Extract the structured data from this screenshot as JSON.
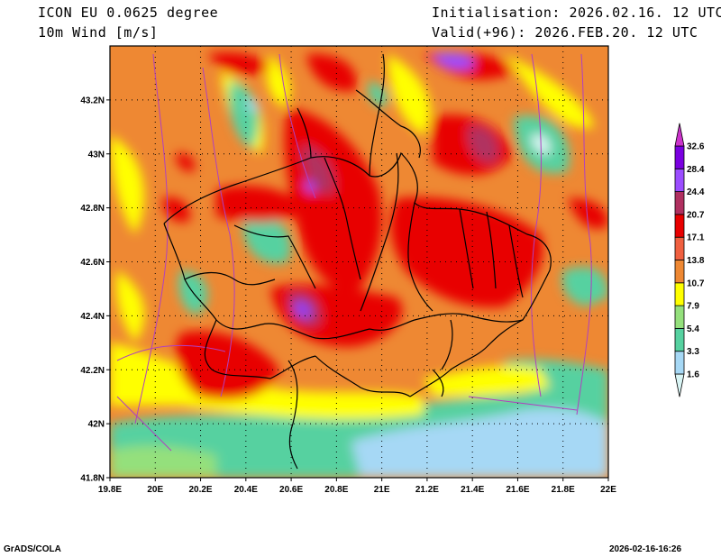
{
  "header": {
    "model_title": "ICON EU 0.0625 degree",
    "field_title": "10m Wind [m/s]",
    "init_text": "Initialisation: 2026.02.16. 12 UTC",
    "valid_text": "Valid(+96): 2026.FEB.20. 12 UTC"
  },
  "map": {
    "lon_range": [
      19.8,
      22.0
    ],
    "lat_range": [
      41.8,
      43.4
    ],
    "x_ticks": [
      "19.8E",
      "20E",
      "20.2E",
      "20.4E",
      "20.6E",
      "20.8E",
      "21E",
      "21.2E",
      "21.4E",
      "21.6E",
      "21.8E",
      "22E"
    ],
    "y_ticks": [
      "41.8N",
      "42N",
      "42.2N",
      "42.4N",
      "42.6N",
      "42.8N",
      "43N",
      "43.2N"
    ],
    "grid": "dotted"
  },
  "colorbar": {
    "levels": [
      "1.6",
      "3.3",
      "5.4",
      "7.9",
      "10.7",
      "13.8",
      "17.1",
      "20.7",
      "24.4",
      "28.4",
      "32.6"
    ],
    "colors": [
      "#d9f5f5",
      "#a6d8f5",
      "#56d1a0",
      "#94e07c",
      "#ffff00",
      "#ee8833",
      "#f06040",
      "#e80000",
      "#b03060",
      "#9b4dff",
      "#7a00e0",
      "#cc33cc"
    ]
  },
  "colors": {
    "bg_orange": "#ee8833",
    "frame": "#000000",
    "grid": "#000000",
    "streamline": "#b040c0"
  },
  "footer": {
    "left": "GrADS/COLA",
    "right": "2026-02-16-16:26"
  }
}
